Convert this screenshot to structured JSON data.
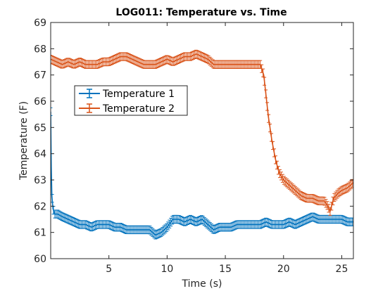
{
  "chart_data": {
    "type": "line",
    "title": "LOG011: Temperature vs. Time",
    "xlabel": "Time (s)",
    "ylabel": "Temperature (F)",
    "xlim": [
      0,
      26
    ],
    "ylim": [
      60,
      69
    ],
    "xticks": [
      5,
      10,
      15,
      20,
      25
    ],
    "yticks": [
      60,
      61,
      62,
      63,
      64,
      65,
      66,
      67,
      68,
      69
    ],
    "grid": false,
    "legend_location": "upper-left",
    "error_bars": true,
    "series": [
      {
        "name": "Temperature 1",
        "color": "#0072BD",
        "error": 0.15,
        "points": [
          [
            0.0,
            65.6
          ],
          [
            0.05,
            63.5
          ],
          [
            0.1,
            62.4
          ],
          [
            0.2,
            61.9
          ],
          [
            0.35,
            61.7
          ],
          [
            0.6,
            61.7
          ],
          [
            1.0,
            61.6
          ],
          [
            1.5,
            61.5
          ],
          [
            2.0,
            61.4
          ],
          [
            2.5,
            61.3
          ],
          [
            3.0,
            61.3
          ],
          [
            3.5,
            61.2
          ],
          [
            4.0,
            61.3
          ],
          [
            4.5,
            61.3
          ],
          [
            5.0,
            61.3
          ],
          [
            5.5,
            61.2
          ],
          [
            6.0,
            61.2
          ],
          [
            6.5,
            61.1
          ],
          [
            7.0,
            61.1
          ],
          [
            7.5,
            61.1
          ],
          [
            8.0,
            61.1
          ],
          [
            8.5,
            61.1
          ],
          [
            9.0,
            60.9
          ],
          [
            9.5,
            61.0
          ],
          [
            10.0,
            61.2
          ],
          [
            10.5,
            61.5
          ],
          [
            11.0,
            61.5
          ],
          [
            11.5,
            61.4
          ],
          [
            12.0,
            61.5
          ],
          [
            12.5,
            61.4
          ],
          [
            13.0,
            61.5
          ],
          [
            13.5,
            61.3
          ],
          [
            14.0,
            61.1
          ],
          [
            14.5,
            61.2
          ],
          [
            15.0,
            61.2
          ],
          [
            15.5,
            61.2
          ],
          [
            16.0,
            61.3
          ],
          [
            16.5,
            61.3
          ],
          [
            17.0,
            61.3
          ],
          [
            17.5,
            61.3
          ],
          [
            18.0,
            61.3
          ],
          [
            18.5,
            61.4
          ],
          [
            19.0,
            61.3
          ],
          [
            19.5,
            61.3
          ],
          [
            20.0,
            61.3
          ],
          [
            20.5,
            61.4
          ],
          [
            21.0,
            61.3
          ],
          [
            21.5,
            61.4
          ],
          [
            22.0,
            61.5
          ],
          [
            22.5,
            61.6
          ],
          [
            23.0,
            61.5
          ],
          [
            23.5,
            61.5
          ],
          [
            24.0,
            61.5
          ],
          [
            24.5,
            61.5
          ],
          [
            25.0,
            61.5
          ],
          [
            25.5,
            61.4
          ],
          [
            26.0,
            61.4
          ]
        ]
      },
      {
        "name": "Temperature 2",
        "color": "#D95319",
        "error": 0.15,
        "points": [
          [
            0.0,
            67.6
          ],
          [
            0.5,
            67.5
          ],
          [
            1.0,
            67.4
          ],
          [
            1.5,
            67.5
          ],
          [
            2.0,
            67.4
          ],
          [
            2.5,
            67.5
          ],
          [
            3.0,
            67.4
          ],
          [
            3.5,
            67.4
          ],
          [
            4.0,
            67.4
          ],
          [
            4.5,
            67.5
          ],
          [
            5.0,
            67.5
          ],
          [
            5.5,
            67.6
          ],
          [
            6.0,
            67.7
          ],
          [
            6.5,
            67.7
          ],
          [
            7.0,
            67.6
          ],
          [
            7.5,
            67.5
          ],
          [
            8.0,
            67.4
          ],
          [
            8.5,
            67.4
          ],
          [
            9.0,
            67.4
          ],
          [
            9.5,
            67.5
          ],
          [
            10.0,
            67.6
          ],
          [
            10.5,
            67.5
          ],
          [
            11.0,
            67.6
          ],
          [
            11.5,
            67.7
          ],
          [
            12.0,
            67.7
          ],
          [
            12.5,
            67.8
          ],
          [
            13.0,
            67.7
          ],
          [
            13.5,
            67.6
          ],
          [
            14.0,
            67.4
          ],
          [
            14.5,
            67.4
          ],
          [
            15.0,
            67.4
          ],
          [
            15.5,
            67.4
          ],
          [
            16.0,
            67.4
          ],
          [
            16.5,
            67.4
          ],
          [
            17.0,
            67.4
          ],
          [
            17.5,
            67.4
          ],
          [
            18.0,
            67.4
          ],
          [
            18.3,
            67.0
          ],
          [
            18.5,
            66.2
          ],
          [
            18.7,
            65.4
          ],
          [
            19.0,
            64.5
          ],
          [
            19.3,
            63.8
          ],
          [
            19.6,
            63.3
          ],
          [
            20.0,
            63.0
          ],
          [
            20.5,
            62.8
          ],
          [
            21.0,
            62.6
          ],
          [
            21.5,
            62.4
          ],
          [
            22.0,
            62.3
          ],
          [
            22.5,
            62.3
          ],
          [
            23.0,
            62.2
          ],
          [
            23.5,
            62.2
          ],
          [
            23.8,
            62.0
          ],
          [
            24.0,
            61.8
          ],
          [
            24.3,
            62.3
          ],
          [
            24.7,
            62.5
          ],
          [
            25.0,
            62.6
          ],
          [
            25.5,
            62.7
          ],
          [
            26.0,
            62.9
          ]
        ]
      }
    ]
  }
}
